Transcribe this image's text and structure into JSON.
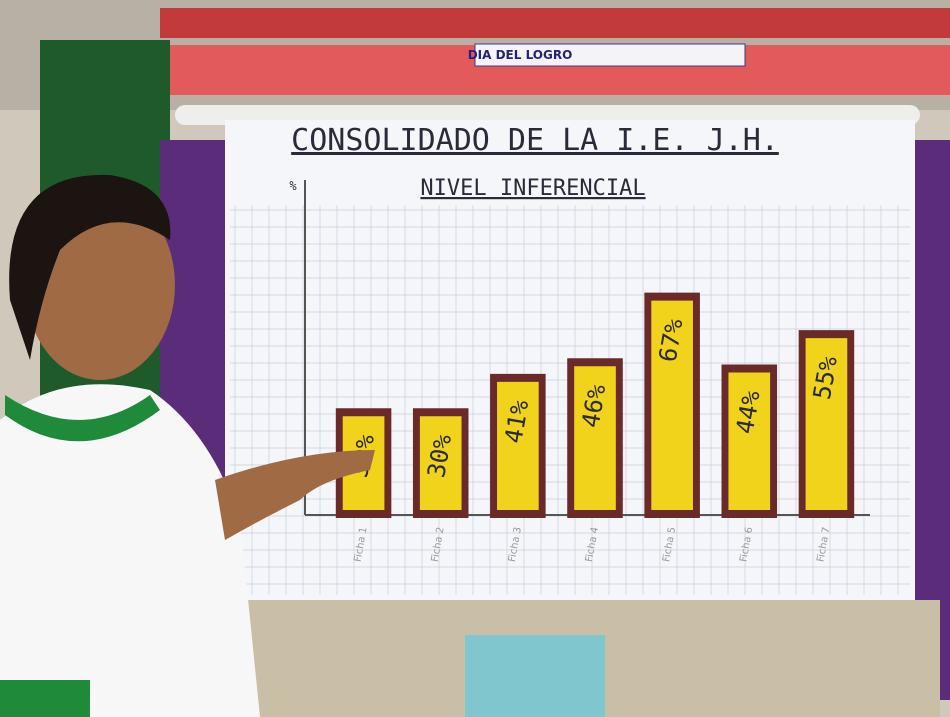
{
  "scene": {
    "banner": "DIA DEL LOGRO"
  },
  "chart_data": {
    "type": "bar",
    "title": "CONSOLIDADO DE LA I.E. J.H.",
    "subtitle": "NIVEL INFERENCIAL",
    "y_label": "%",
    "categories": [
      "Ficha 1",
      "Ficha 2",
      "Ficha 3",
      "Ficha 4",
      "Ficha 5",
      "Ficha 6",
      "Ficha 7"
    ],
    "values": [
      30,
      30,
      41,
      46,
      67,
      44,
      55
    ],
    "value_labels": [
      "30%",
      "30%",
      "41%",
      "46%",
      "67%",
      "44%",
      "55%"
    ],
    "color": "#f2d31b",
    "ylim": [
      0,
      80
    ]
  }
}
